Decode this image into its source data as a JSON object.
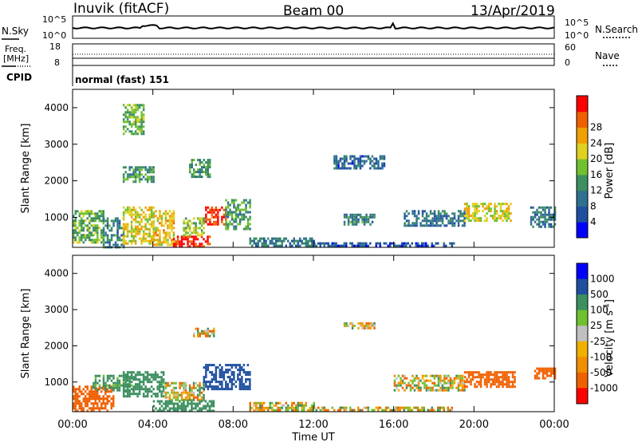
{
  "header": {
    "station": "Inuvik (fitACF)",
    "beam": "Beam 00",
    "date": "13/Apr/2019"
  },
  "labels": {
    "nsky": "N.Sky",
    "nsearch": "N.Search",
    "freq_line1": "Freq.",
    "freq_line2": "[MHz]",
    "nave": "Nave",
    "cpid": "CPID",
    "cpid_value": "normal (fast) 151"
  },
  "strips": {
    "noise": {
      "left_ticks": [
        "10^5",
        "10^0"
      ],
      "right_ticks": [
        "10^5",
        "10^0"
      ]
    },
    "freq": {
      "left_ticks": [
        "18",
        "8"
      ],
      "right_ticks": [
        "60",
        "0"
      ]
    }
  },
  "colors": {
    "power": [
      "#0000ff",
      "#1f4fa0",
      "#2f6f8f",
      "#3c8f5f",
      "#70c030",
      "#e0d020",
      "#f0a000",
      "#f06000",
      "#ff0000"
    ],
    "velocity": [
      "#ff0000",
      "#f06000",
      "#f09000",
      "#f0b000",
      "#c0c0c0",
      "#70c030",
      "#3c8f5f",
      "#1f4fa0",
      "#0000ff"
    ]
  },
  "chart_data": [
    {
      "type": "heatmap",
      "title": "",
      "xlabel": "Time UT",
      "ylabel": "Slant Range [km]",
      "xlim": [
        "00:00",
        "24:00"
      ],
      "ylim": [
        180,
        4500
      ],
      "x_ticks": [
        "00:00",
        "04:00",
        "08:00",
        "12:00",
        "16:00",
        "20:00",
        "00:00"
      ],
      "y_ticks": [
        1000,
        2000,
        3000,
        4000
      ],
      "colorbar": {
        "label": "Power [dB]",
        "ticks": [
          4,
          8,
          12,
          16,
          20,
          24,
          28
        ],
        "range": [
          0,
          30
        ]
      },
      "regions": [
        {
          "t0": 0.0,
          "t1": 1.5,
          "r0": 300,
          "r1": 1200,
          "value": 14
        },
        {
          "t0": 1.5,
          "t1": 2.5,
          "r0": 200,
          "r1": 1000,
          "value": 10
        },
        {
          "t0": 2.5,
          "t1": 4.0,
          "r0": 300,
          "r1": 1300,
          "value": 18
        },
        {
          "t0": 4.0,
          "t1": 5.0,
          "r0": 250,
          "r1": 1200,
          "value": 20
        },
        {
          "t0": 5.0,
          "t1": 6.8,
          "r0": 200,
          "r1": 500,
          "value": 28
        },
        {
          "t0": 5.5,
          "t1": 6.5,
          "r0": 500,
          "r1": 1000,
          "value": 16
        },
        {
          "t0": 6.6,
          "t1": 7.6,
          "r0": 800,
          "r1": 1300,
          "value": 27
        },
        {
          "t0": 7.6,
          "t1": 8.8,
          "r0": 700,
          "r1": 1500,
          "value": 12
        },
        {
          "t0": 8.8,
          "t1": 12.0,
          "r0": 200,
          "r1": 450,
          "value": 9
        },
        {
          "t0": 12.0,
          "t1": 19.0,
          "r0": 200,
          "r1": 320,
          "value": 6
        },
        {
          "t0": 13.0,
          "t1": 15.5,
          "r0": 2350,
          "r1": 2700,
          "value": 7
        },
        {
          "t0": 13.5,
          "t1": 15.0,
          "r0": 800,
          "r1": 1100,
          "value": 10
        },
        {
          "t0": 16.5,
          "t1": 19.5,
          "r0": 800,
          "r1": 1200,
          "value": 8
        },
        {
          "t0": 19.5,
          "t1": 21.8,
          "r0": 900,
          "r1": 1400,
          "value": 18
        },
        {
          "t0": 22.8,
          "t1": 24.0,
          "r0": 750,
          "r1": 1300,
          "value": 9
        },
        {
          "t0": 2.5,
          "t1": 3.5,
          "r0": 3300,
          "r1": 4100,
          "value": 14
        },
        {
          "t0": 2.5,
          "t1": 4.0,
          "r0": 2000,
          "r1": 2400,
          "value": 12
        },
        {
          "t0": 5.8,
          "t1": 6.8,
          "r0": 2100,
          "r1": 2600,
          "value": 12
        }
      ]
    },
    {
      "type": "heatmap",
      "title": "",
      "xlabel": "Time UT",
      "ylabel": "Slant Range [km]",
      "xlim": [
        "00:00",
        "24:00"
      ],
      "ylim": [
        180,
        4500
      ],
      "x_ticks": [
        "00:00",
        "04:00",
        "08:00",
        "12:00",
        "16:00",
        "20:00",
        "00:00"
      ],
      "y_ticks": [
        1000,
        2000,
        3000,
        4000
      ],
      "colorbar": {
        "label": "Velocity [m s^-1]",
        "ticks": [
          1000,
          500,
          100,
          25,
          -25,
          -100,
          -500,
          -1000
        ]
      },
      "regions": [
        {
          "t0": 0.0,
          "t1": 2.0,
          "r0": 200,
          "r1": 900,
          "value": -300
        },
        {
          "t0": 1.0,
          "t1": 3.0,
          "r0": 800,
          "r1": 1200,
          "value": 200
        },
        {
          "t0": 2.5,
          "t1": 4.5,
          "r0": 600,
          "r1": 1300,
          "value": 300
        },
        {
          "t0": 4.5,
          "t1": 6.5,
          "r0": 500,
          "r1": 1000,
          "value": 0
        },
        {
          "t0": 4.0,
          "t1": 7.0,
          "r0": 200,
          "r1": 500,
          "value": 300
        },
        {
          "t0": 6.5,
          "t1": 8.8,
          "r0": 800,
          "r1": 1500,
          "value": 800
        },
        {
          "t0": 8.8,
          "t1": 12.0,
          "r0": 200,
          "r1": 450,
          "value": 0
        },
        {
          "t0": 12.0,
          "t1": 19.0,
          "r0": 200,
          "r1": 320,
          "value": 0
        },
        {
          "t0": 16.0,
          "t1": 19.5,
          "r0": 800,
          "r1": 1200,
          "value": 0
        },
        {
          "t0": 19.5,
          "t1": 22.0,
          "r0": 900,
          "r1": 1300,
          "value": -300
        },
        {
          "t0": 23.0,
          "t1": 24.0,
          "r0": 1100,
          "r1": 1400,
          "value": -300
        },
        {
          "t0": 6.0,
          "t1": 7.0,
          "r0": 2300,
          "r1": 2500,
          "value": 0
        },
        {
          "t0": 13.5,
          "t1": 15.0,
          "r0": 2500,
          "r1": 2650,
          "value": 0
        }
      ]
    }
  ]
}
